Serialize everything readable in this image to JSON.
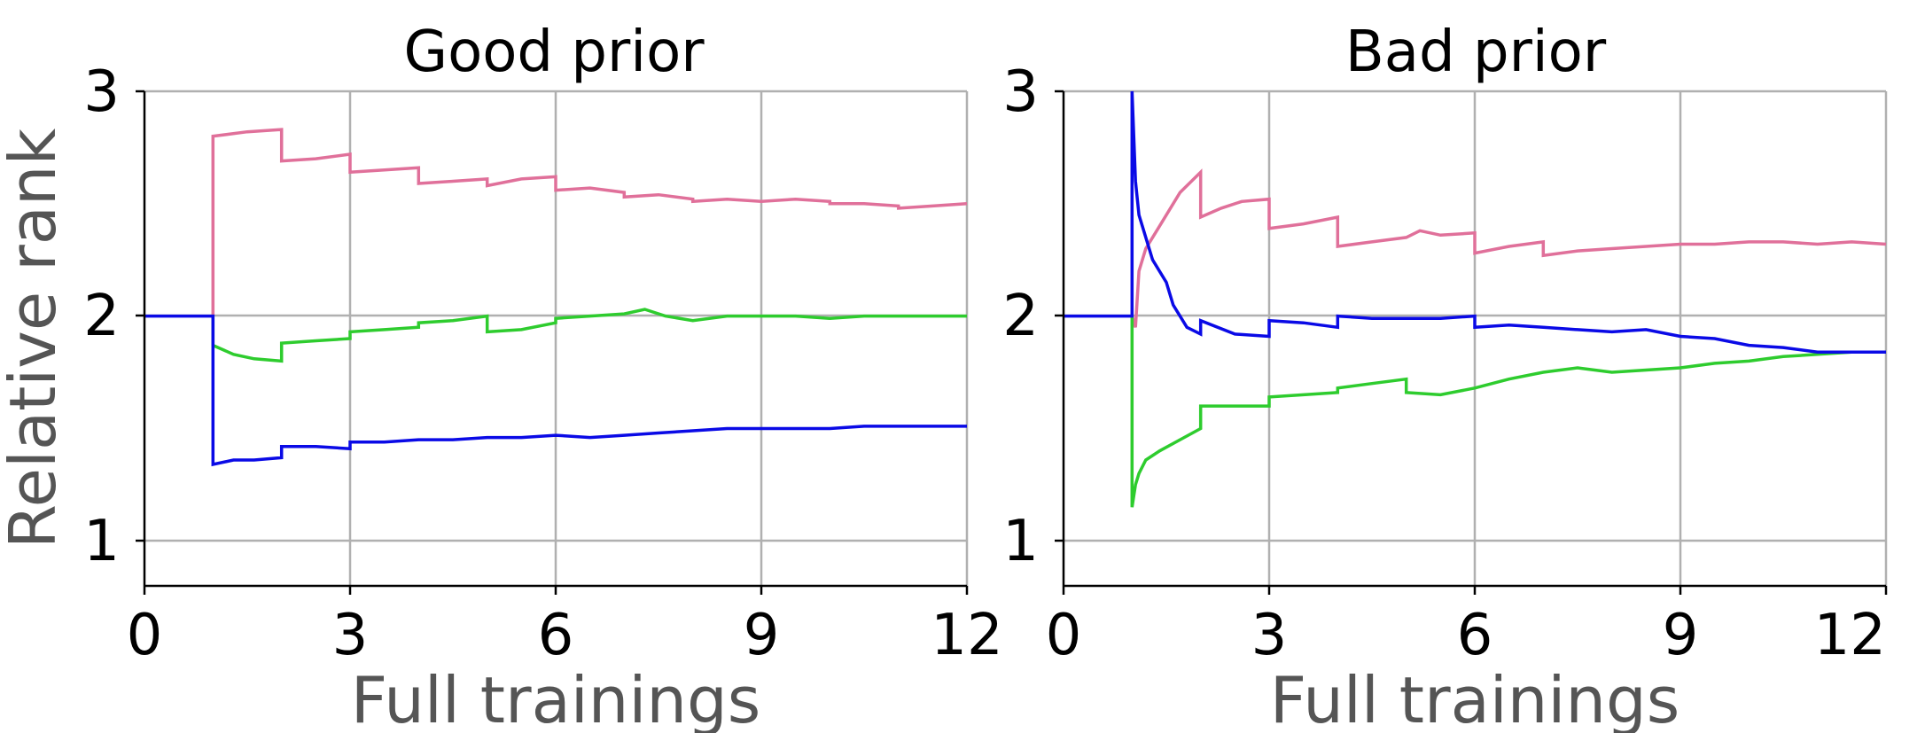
{
  "chart_data": [
    {
      "type": "line",
      "title": "Good prior",
      "xlabel": "Full trainings",
      "ylabel": "Relative rank",
      "xlim": [
        0,
        12
      ],
      "ylim": [
        0.8,
        3
      ],
      "xticks": [
        "0",
        "3",
        "6",
        "9",
        "12"
      ],
      "yticks": [
        "1",
        "2",
        "3"
      ],
      "grid": true,
      "colors": {
        "pink": "#e0709a",
        "green": "#2ecc2e",
        "blue": "#0a0ae6"
      },
      "series": [
        {
          "color": "#e0709a",
          "x": [
            1,
            1,
            1.5,
            2,
            2,
            2.5,
            3,
            3,
            3.5,
            4,
            4,
            4.5,
            5,
            5,
            5.5,
            6,
            6,
            6.5,
            7,
            7,
            7.5,
            8,
            8,
            8.5,
            9,
            9,
            9.5,
            10,
            10,
            10.5,
            11,
            11,
            11.5,
            12
          ],
          "y": [
            2,
            2.8,
            2.82,
            2.83,
            2.69,
            2.7,
            2.72,
            2.64,
            2.65,
            2.66,
            2.59,
            2.6,
            2.61,
            2.58,
            2.61,
            2.62,
            2.56,
            2.57,
            2.55,
            2.53,
            2.54,
            2.52,
            2.51,
            2.52,
            2.51,
            2.51,
            2.52,
            2.51,
            2.5,
            2.5,
            2.49,
            2.48,
            2.49,
            2.5
          ]
        },
        {
          "color": "#2ecc2e",
          "x": [
            1,
            1,
            1.3,
            1.6,
            2,
            2,
            2.5,
            3,
            3,
            3.5,
            4,
            4,
            4.5,
            5,
            5,
            5.5,
            6,
            6,
            6.5,
            7,
            7.3,
            7.6,
            8,
            8.5,
            9,
            9.5,
            10,
            10.5,
            11,
            11.5,
            12
          ],
          "y": [
            2,
            1.87,
            1.83,
            1.81,
            1.8,
            1.88,
            1.89,
            1.9,
            1.93,
            1.94,
            1.95,
            1.97,
            1.98,
            2.0,
            1.93,
            1.94,
            1.97,
            1.99,
            2.0,
            2.01,
            2.03,
            2.0,
            1.98,
            2.0,
            2.0,
            2.0,
            1.99,
            2.0,
            2.0,
            2.0,
            2.0
          ]
        },
        {
          "color": "#0a0ae6",
          "x": [
            0,
            1,
            1,
            1.3,
            1.6,
            2,
            2,
            2.5,
            3,
            3,
            3.5,
            4,
            4.5,
            5,
            5.5,
            6,
            6.5,
            7,
            7.5,
            8,
            8.5,
            9,
            9.5,
            10,
            10.5,
            11,
            11.5,
            12
          ],
          "y": [
            2,
            2,
            1.34,
            1.36,
            1.36,
            1.37,
            1.42,
            1.42,
            1.41,
            1.44,
            1.44,
            1.45,
            1.45,
            1.46,
            1.46,
            1.47,
            1.46,
            1.47,
            1.48,
            1.49,
            1.5,
            1.5,
            1.5,
            1.5,
            1.51,
            1.51,
            1.51,
            1.51
          ]
        }
      ]
    },
    {
      "type": "line",
      "title": "Bad prior",
      "xlabel": "Full trainings",
      "xlim": [
        0,
        12
      ],
      "ylim": [
        0.8,
        3
      ],
      "xticks": [
        "0",
        "3",
        "6",
        "9",
        "12"
      ],
      "yticks": [
        "1",
        "2",
        "3"
      ],
      "grid": true,
      "colors": {
        "pink": "#e0709a",
        "green": "#2ecc2e",
        "blue": "#0a0ae6"
      },
      "series": [
        {
          "color": "#e0709a",
          "x": [
            1,
            1.05,
            1.1,
            1.2,
            1.4,
            1.7,
            2.0,
            2.0,
            2.3,
            2.6,
            3.0,
            3.0,
            3.5,
            4.0,
            4.0,
            4.5,
            5.0,
            5.2,
            5.5,
            6.0,
            6.0,
            6.5,
            7.0,
            7.0,
            7.5,
            8.0,
            8.5,
            9.0,
            9.5,
            10.0,
            10.5,
            11.0,
            11.5,
            12.0
          ],
          "y": [
            2.0,
            1.95,
            2.2,
            2.3,
            2.4,
            2.55,
            2.64,
            2.44,
            2.48,
            2.51,
            2.52,
            2.39,
            2.41,
            2.44,
            2.31,
            2.33,
            2.35,
            2.38,
            2.36,
            2.37,
            2.28,
            2.31,
            2.33,
            2.27,
            2.29,
            2.3,
            2.31,
            2.32,
            2.32,
            2.33,
            2.33,
            2.32,
            2.33,
            2.32
          ]
        },
        {
          "color": "#2ecc2e",
          "x": [
            1,
            1.0,
            1.05,
            1.1,
            1.2,
            1.4,
            1.7,
            2.0,
            2.0,
            2.5,
            3.0,
            3.0,
            3.5,
            4.0,
            4.0,
            4.5,
            5.0,
            5.0,
            5.5,
            6.0,
            6.5,
            7.0,
            7.5,
            8.0,
            8.5,
            9.0,
            9.5,
            10.0,
            10.5,
            11.0,
            11.5,
            12.0
          ],
          "y": [
            2.0,
            1.15,
            1.25,
            1.3,
            1.36,
            1.4,
            1.45,
            1.5,
            1.6,
            1.6,
            1.6,
            1.64,
            1.65,
            1.66,
            1.68,
            1.7,
            1.72,
            1.66,
            1.65,
            1.68,
            1.72,
            1.75,
            1.77,
            1.75,
            1.76,
            1.77,
            1.79,
            1.8,
            1.82,
            1.83,
            1.84,
            1.84
          ]
        },
        {
          "color": "#0a0ae6",
          "x": [
            0,
            1.0,
            1.0,
            1.05,
            1.1,
            1.2,
            1.3,
            1.5,
            1.6,
            1.8,
            2.0,
            2.0,
            2.5,
            3.0,
            3.0,
            3.5,
            4.0,
            4.0,
            4.5,
            5.0,
            5.5,
            6.0,
            6.0,
            6.5,
            7.0,
            7.5,
            8.0,
            8.5,
            9.0,
            9.5,
            10.0,
            10.5,
            11.0,
            11.5,
            12.0
          ],
          "y": [
            2.0,
            2.0,
            3.0,
            2.6,
            2.45,
            2.35,
            2.25,
            2.15,
            2.05,
            1.95,
            1.92,
            1.98,
            1.92,
            1.91,
            1.98,
            1.97,
            1.95,
            2.0,
            1.99,
            1.99,
            1.99,
            2.0,
            1.95,
            1.96,
            1.95,
            1.94,
            1.93,
            1.94,
            1.91,
            1.9,
            1.87,
            1.86,
            1.84,
            1.84,
            1.84
          ]
        }
      ]
    }
  ]
}
